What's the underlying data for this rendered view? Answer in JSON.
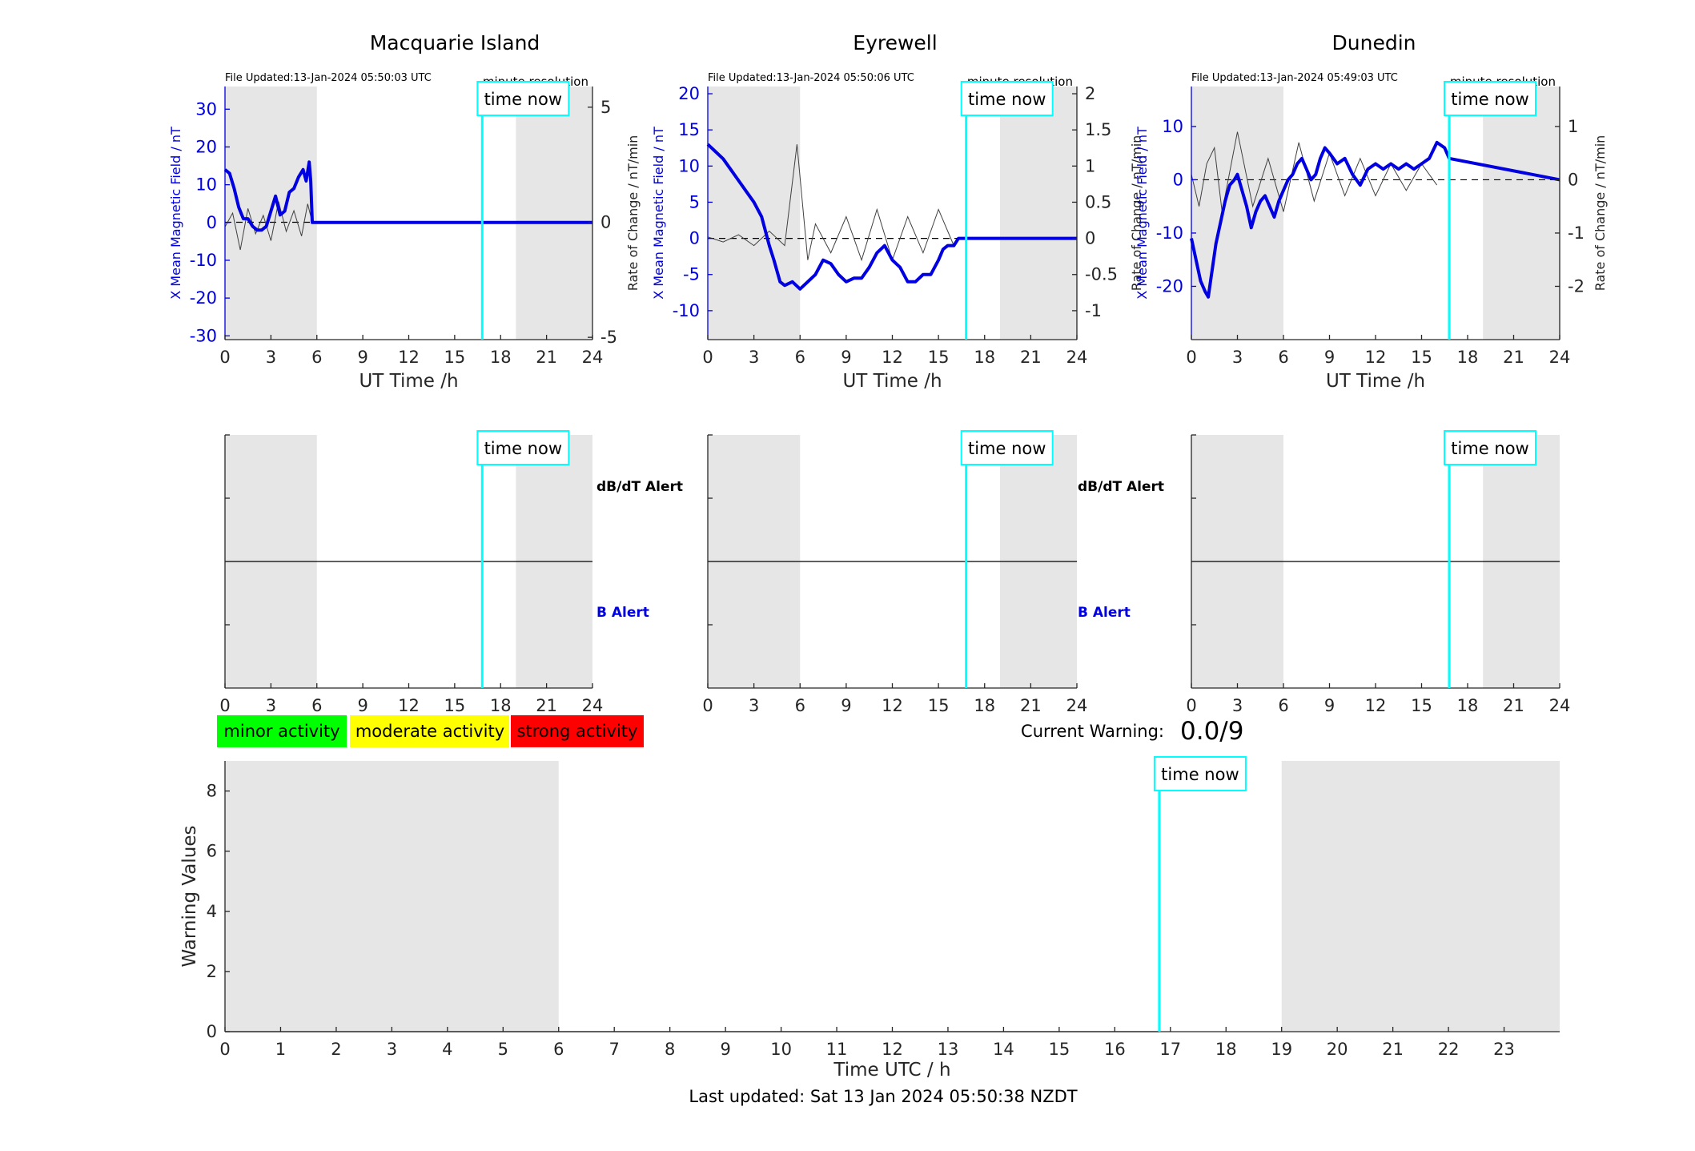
{
  "colors": {
    "now_line": "#00ffff",
    "field": "#0000e0",
    "rate": "#404040",
    "shade": "#e6e6e6",
    "minor": "#00ff00",
    "moderate": "#ffff00",
    "strong": "#ff0000",
    "alert_b": "#0000e0",
    "alert_dbdt": "#000000"
  },
  "common": {
    "file_updated_prefix": "File Updated:",
    "resolution": "minute resolution",
    "time_now": "time now",
    "ut_xlabel": "UT Time /h",
    "left_ylabel": "X Mean Magnetic Field / nT",
    "right_ylabel": "Rate of Change / nT/min",
    "alert_dbdt": "dB/dT Alert",
    "alert_b": "B Alert"
  },
  "legend": {
    "minor": "minor activity",
    "moderate": "moderate activity",
    "strong": "strong activity"
  },
  "warning": {
    "label": "Current Warning:",
    "value": "0.0/9"
  },
  "footer": {
    "last_updated": "Last updated: Sat 13 Jan 2024 05:50:38 NZDT"
  },
  "chart_data": [
    {
      "type": "line",
      "title": "Macquarie Island",
      "file_updated": "13-Jan-2024 05:50:03 UTC",
      "xlabel": "UT Time /h",
      "ylabel": "X Mean Magnetic Field / nT",
      "y2label": "Rate of Change / nT/min",
      "xlim": [
        0,
        24
      ],
      "xticks": [
        0,
        3,
        6,
        9,
        12,
        15,
        18,
        21,
        24
      ],
      "ylim": [
        -31,
        36
      ],
      "yticks": [
        -30,
        -20,
        -10,
        0,
        10,
        20,
        30
      ],
      "y2lim": [
        -5.1,
        5.9
      ],
      "y2ticks": [
        -5,
        0,
        5
      ],
      "now_hour": 16.8,
      "shaded_hours": [
        [
          0,
          6
        ],
        [
          19,
          24
        ]
      ],
      "series": [
        {
          "name": "X Mean Magnetic Field",
          "axis": "left",
          "x": [
            0,
            0.3,
            0.6,
            0.9,
            1.2,
            1.5,
            1.8,
            2.1,
            2.4,
            2.7,
            3.0,
            3.3,
            3.6,
            3.9,
            4.2,
            4.5,
            4.8,
            5.1,
            5.3,
            5.5,
            5.6,
            5.7,
            6,
            24
          ],
          "y": [
            14,
            13,
            9,
            4,
            1,
            1,
            -1,
            -2,
            -2,
            -1,
            3,
            7,
            2,
            3,
            8,
            9,
            12,
            14,
            11,
            16,
            11,
            0,
            0,
            0
          ]
        },
        {
          "name": "Rate of Change",
          "axis": "right",
          "x": [
            0,
            0.5,
            1.0,
            1.5,
            2.0,
            2.5,
            3.0,
            3.5,
            4.0,
            4.5,
            5.0,
            5.4,
            5.7
          ],
          "y": [
            -0.2,
            0.4,
            -1.2,
            0.6,
            -0.5,
            0.3,
            -0.8,
            0.9,
            -0.4,
            0.5,
            -0.6,
            0.8,
            0
          ]
        }
      ]
    },
    {
      "type": "line",
      "title": "Eyrewell",
      "file_updated": "13-Jan-2024 05:50:06 UTC",
      "xlabel": "UT Time /h",
      "ylabel": "X Mean Magnetic Field / nT",
      "y2label": "Rate of Change / nT/min",
      "xlim": [
        0,
        24
      ],
      "xticks": [
        0,
        3,
        6,
        9,
        12,
        15,
        18,
        21,
        24
      ],
      "ylim": [
        -14,
        21
      ],
      "yticks": [
        -10,
        -5,
        0,
        5,
        10,
        15,
        20
      ],
      "y2lim": [
        -1.4,
        2.1
      ],
      "y2ticks": [
        -1,
        -0.5,
        0,
        0.5,
        1,
        1.5,
        2
      ],
      "now_hour": 16.8,
      "shaded_hours": [
        [
          0,
          6
        ],
        [
          19,
          24
        ]
      ],
      "series": [
        {
          "name": "X Mean Magnetic Field",
          "axis": "left",
          "x": [
            0,
            0.5,
            1.0,
            1.5,
            2.0,
            2.5,
            3.0,
            3.5,
            4.0,
            4.3,
            4.7,
            5.0,
            5.5,
            6.0,
            6.5,
            7.0,
            7.5,
            8.0,
            8.5,
            9.0,
            9.5,
            10.0,
            10.5,
            11.0,
            11.5,
            12.0,
            12.5,
            13.0,
            13.5,
            14.0,
            14.5,
            15.0,
            15.3,
            15.6,
            16.0,
            16.3,
            24
          ],
          "y": [
            13,
            12,
            11,
            9.5,
            8,
            6.5,
            5,
            3,
            -1,
            -3,
            -6,
            -6.5,
            -6,
            -7,
            -6,
            -5,
            -3,
            -3.5,
            -5,
            -6,
            -5.5,
            -5.5,
            -4,
            -2,
            -1,
            -3,
            -4,
            -6,
            -6,
            -5,
            -5,
            -3,
            -1.5,
            -1,
            -1,
            0,
            0
          ]
        },
        {
          "name": "Rate of Change",
          "axis": "right",
          "x": [
            0,
            1,
            2,
            3,
            4,
            5,
            5.8,
            6.5,
            7,
            8,
            9,
            10,
            11,
            12,
            13,
            14,
            15,
            16
          ],
          "y": [
            0.02,
            -0.05,
            0.05,
            -0.1,
            0.1,
            -0.1,
            1.3,
            -0.3,
            0.2,
            -0.2,
            0.3,
            -0.3,
            0.4,
            -0.3,
            0.3,
            -0.2,
            0.4,
            -0.1
          ]
        }
      ]
    },
    {
      "type": "line",
      "title": "Dunedin",
      "file_updated": "13-Jan-2024 05:49:03 UTC",
      "xlabel": "UT Time /h",
      "ylabel": "X Mean Magnetic Field / nT",
      "y2label": "Rate of Change / nT/min",
      "xlim": [
        0,
        24
      ],
      "xticks": [
        0,
        3,
        6,
        9,
        12,
        15,
        18,
        21,
        24
      ],
      "ylim": [
        -30,
        17.5
      ],
      "yticks": [
        -20,
        -10,
        0,
        10
      ],
      "y2lim": [
        -3,
        1.75
      ],
      "y2ticks": [
        -2,
        -1,
        0,
        1
      ],
      "now_hour": 16.8,
      "shaded_hours": [
        [
          0,
          6
        ],
        [
          19,
          24
        ]
      ],
      "series": [
        {
          "name": "X Mean Magnetic Field",
          "axis": "left",
          "x": [
            0,
            0.3,
            0.6,
            0.9,
            1.1,
            1.3,
            1.6,
            1.9,
            2.2,
            2.5,
            2.8,
            3.0,
            3.3,
            3.6,
            3.9,
            4.2,
            4.5,
            4.8,
            5.1,
            5.4,
            5.7,
            6.0,
            6.3,
            6.6,
            6.9,
            7.2,
            7.5,
            7.8,
            8.1,
            8.4,
            8.7,
            9.0,
            9.5,
            10.0,
            10.5,
            11.0,
            11.5,
            12.0,
            12.5,
            13.0,
            13.5,
            14.0,
            14.5,
            15.0,
            15.5,
            16.0,
            16.5,
            16.8,
            24
          ],
          "y": [
            -11,
            -15,
            -19,
            -21,
            -22,
            -18,
            -12,
            -8,
            -4,
            -1,
            0,
            1,
            -2,
            -5,
            -9,
            -6,
            -4,
            -3,
            -5,
            -7,
            -4,
            -2,
            0,
            1,
            3,
            4,
            2,
            0,
            1,
            4,
            6,
            5,
            3,
            4,
            1,
            -1,
            2,
            3,
            2,
            3,
            2,
            3,
            2,
            3,
            4,
            7,
            6,
            4,
            0
          ]
        },
        {
          "name": "Rate of Change",
          "axis": "right",
          "x": [
            0,
            0.5,
            1,
            1.5,
            2,
            3,
            4,
            5,
            6,
            7,
            8,
            9,
            10,
            11,
            12,
            13,
            14,
            15,
            16
          ],
          "y": [
            0.1,
            -0.5,
            0.3,
            0.6,
            -0.6,
            0.9,
            -0.5,
            0.4,
            -0.6,
            0.7,
            -0.4,
            0.5,
            -0.3,
            0.4,
            -0.3,
            0.3,
            -0.2,
            0.3,
            -0.1
          ]
        }
      ]
    },
    {
      "type": "line",
      "title": "",
      "xlabel": "Time UTC / h",
      "ylabel": "Warning Values",
      "xlim": [
        0,
        24
      ],
      "xticks": [
        0,
        1,
        2,
        3,
        4,
        5,
        6,
        7,
        8,
        9,
        10,
        11,
        12,
        13,
        14,
        15,
        16,
        17,
        18,
        19,
        20,
        21,
        22,
        23
      ],
      "ylim": [
        0,
        9
      ],
      "yticks": [
        0,
        2,
        4,
        6,
        8
      ],
      "now_hour": 16.8,
      "shaded_hours": [
        [
          0,
          6
        ],
        [
          19,
          24
        ]
      ],
      "series": [
        {
          "name": "Warning",
          "x": [
            0,
            16.8
          ],
          "y": [
            0,
            0
          ]
        }
      ]
    }
  ]
}
